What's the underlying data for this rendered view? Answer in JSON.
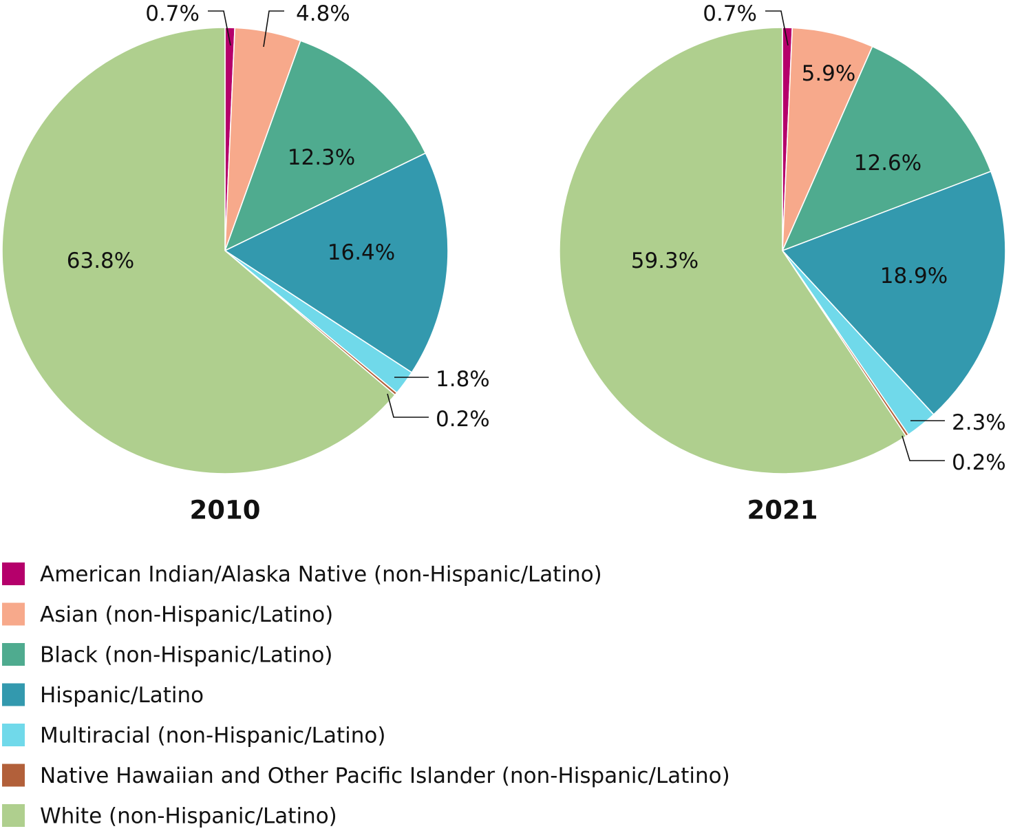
{
  "chart_data": {
    "type": "pie",
    "categories": [
      "American Indian/Alaska Native (non-Hispanic/Latino)",
      "Asian (non-Hispanic/Latino)",
      "Black (non-Hispanic/Latino)",
      "Hispanic/Latino",
      "Multiracial (non-Hispanic/Latino)",
      "Native Hawaiian and Other Pacific Islander (non-Hispanic/Latino)",
      "White (non-Hispanic/Latino)"
    ],
    "colors": [
      "#b5006b",
      "#f7a98b",
      "#4fab8f",
      "#3399ae",
      "#70d9ea",
      "#b2603a",
      "#afcf8e"
    ],
    "series": [
      {
        "name": "2010",
        "values": [
          0.7,
          4.8,
          12.3,
          16.4,
          1.8,
          0.2,
          63.8
        ],
        "labels": [
          "0.7%",
          "4.8%",
          "12.3%",
          "16.4%",
          "1.8%",
          "0.2%",
          "63.8%"
        ]
      },
      {
        "name": "2021",
        "values": [
          0.7,
          5.9,
          12.6,
          18.9,
          2.3,
          0.2,
          59.3
        ],
        "labels": [
          "0.7%",
          "5.9%",
          "12.6%",
          "18.9%",
          "2.3%",
          "0.2%",
          "59.3%"
        ]
      }
    ],
    "legend_position": "bottom-left"
  }
}
